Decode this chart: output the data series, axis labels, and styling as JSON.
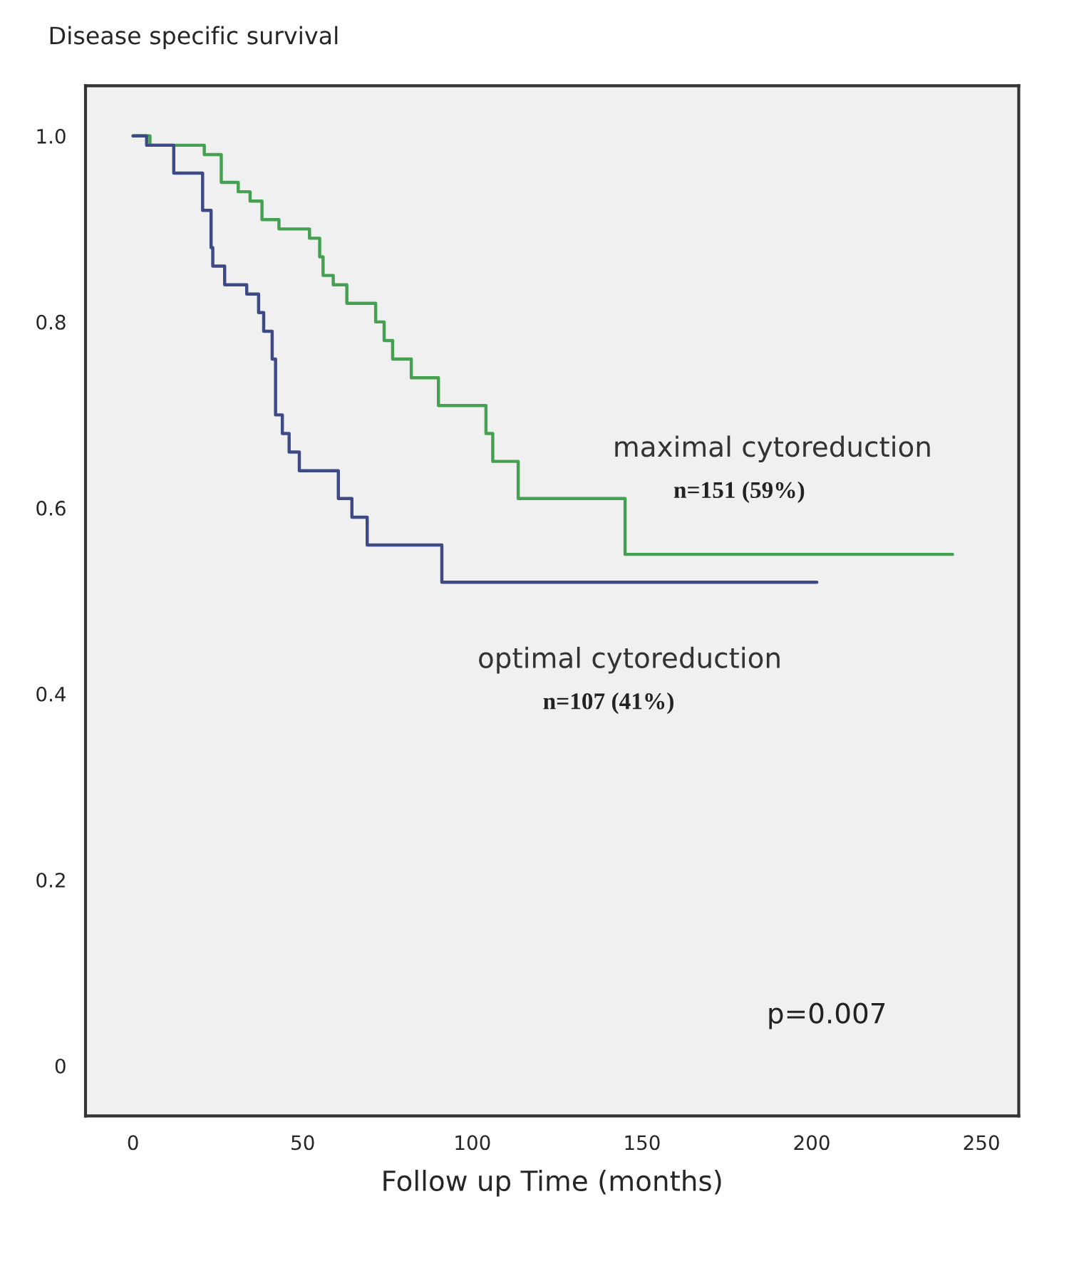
{
  "chart_data": {
    "type": "step",
    "ylabel": "Disease specific survival",
    "xlabel": "Follow up Time (months)",
    "xlim": [
      -14,
      261
    ],
    "ylim": [
      -0.054,
      1.054
    ],
    "xticks": [
      0,
      50,
      100,
      150,
      200,
      250
    ],
    "yticks": [
      0,
      {
        "value": 0.2,
        "label": "0.2"
      },
      {
        "value": 0.4,
        "label": "0.4"
      },
      {
        "value": 0.6,
        "label": "0.6"
      },
      {
        "value": 0.8,
        "label": "0.8"
      },
      {
        "value": 1,
        "label": "1.0"
      }
    ],
    "grid": false,
    "legend": false,
    "marker": "none",
    "line_style": "solid",
    "series": [
      {
        "name": "maximal cytoreduction",
        "color": "#45a052",
        "x": [
          0,
          5,
          21,
          26,
          31,
          34.5,
          38,
          43,
          52,
          55,
          56,
          59,
          63,
          71.5,
          74,
          76.5,
          82,
          90,
          104,
          106,
          113.5,
          145,
          241.5
        ],
        "values": [
          1.0,
          0.99,
          0.98,
          0.95,
          0.94,
          0.93,
          0.91,
          0.9,
          0.89,
          0.87,
          0.85,
          0.84,
          0.82,
          0.8,
          0.78,
          0.76,
          0.74,
          0.71,
          0.68,
          0.65,
          0.61,
          0.55,
          0.55
        ]
      },
      {
        "name": "optimal cytoreduction",
        "color": "#3d4a86",
        "x": [
          0,
          4,
          12,
          20.5,
          23,
          23.5,
          27,
          33.5,
          37,
          38.5,
          41,
          42,
          44,
          46,
          49,
          60.5,
          64.5,
          69,
          91,
          201.5
        ],
        "values": [
          1.0,
          0.99,
          0.96,
          0.92,
          0.88,
          0.86,
          0.84,
          0.83,
          0.81,
          0.79,
          0.76,
          0.7,
          0.68,
          0.66,
          0.64,
          0.61,
          0.59,
          0.56,
          0.52,
          0.52
        ]
      }
    ],
    "annotations": [
      "n=151 (59%)",
      "n=107 (41%)",
      "p=0.007"
    ]
  }
}
